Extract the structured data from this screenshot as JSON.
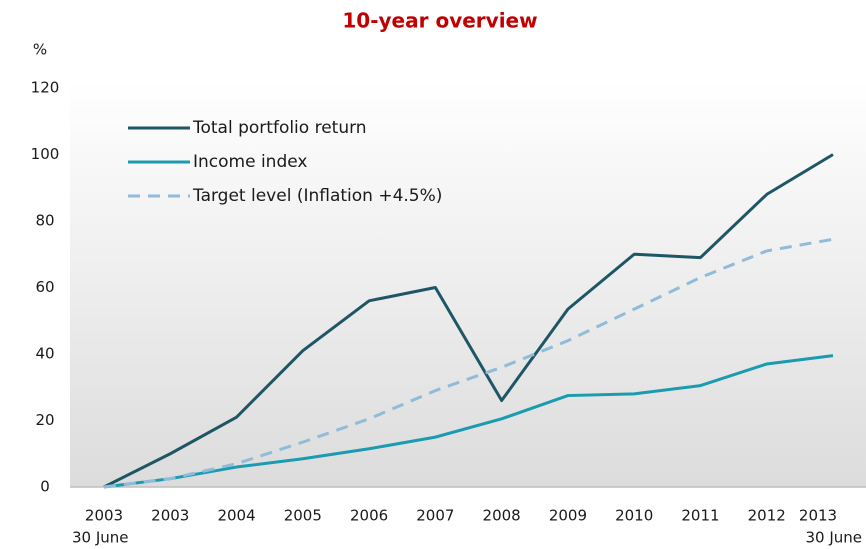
{
  "chart_data": {
    "type": "line",
    "title": "10-year overview",
    "y_unit": "%",
    "categories": [
      "2003",
      "2003",
      "2004",
      "2005",
      "2006",
      "2007",
      "2008",
      "2009",
      "2010",
      "2011",
      "2012",
      "2013"
    ],
    "first_category_note": "30 June",
    "last_category_note": "30 June",
    "series": [
      {
        "name": "Total portfolio return",
        "color": "#1f5666",
        "dashed": false,
        "values": [
          0,
          10,
          21,
          41,
          56,
          60,
          26,
          53.5,
          70,
          69,
          88,
          100
        ]
      },
      {
        "name": "Income index",
        "color": "#1a9bb0",
        "dashed": false,
        "values": [
          0,
          2.5,
          6,
          8.5,
          11.5,
          15,
          20.5,
          27.5,
          28,
          30.5,
          37,
          39.5
        ]
      },
      {
        "name": "Target level (Inflation +4.5%)",
        "color": "#8fbcd8",
        "dashed": true,
        "values": [
          0,
          2.5,
          7,
          13.5,
          20.5,
          29,
          36,
          44,
          53.5,
          63,
          71,
          74.5
        ]
      }
    ],
    "ylim": [
      0,
      120
    ],
    "yticks": [
      0,
      20,
      40,
      60,
      80,
      100,
      120
    ],
    "grid": false,
    "legend": "top-left"
  }
}
